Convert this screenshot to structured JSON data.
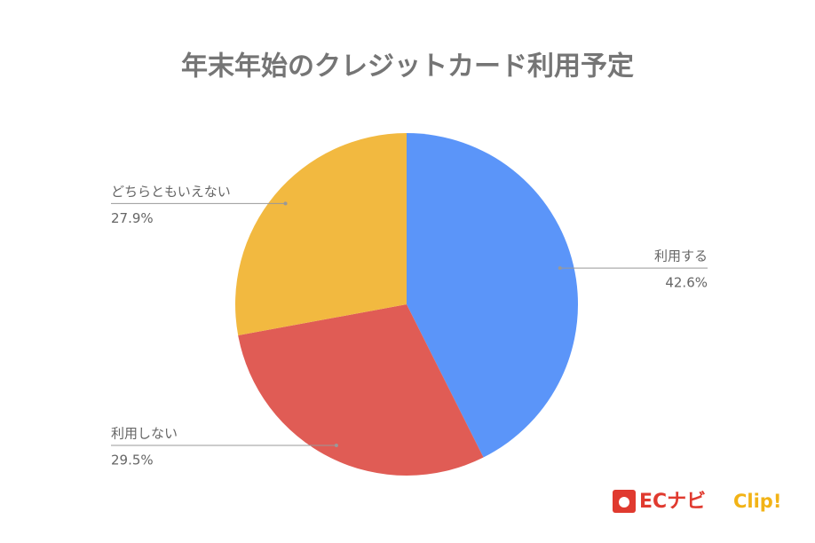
{
  "chart_data": {
    "type": "pie",
    "title": "年末年始のクレジットカード利用予定",
    "categories": [
      "利用する",
      "利用しない",
      "どちらともいえない"
    ],
    "values": [
      42.6,
      29.5,
      27.9
    ],
    "value_labels": [
      "42.6%",
      "29.5%",
      "27.9%"
    ],
    "colors": [
      "#5b95f9",
      "#e05c55",
      "#f2b940"
    ]
  },
  "logo": {
    "brand": "ECナビ",
    "suffix": "Clip!"
  }
}
